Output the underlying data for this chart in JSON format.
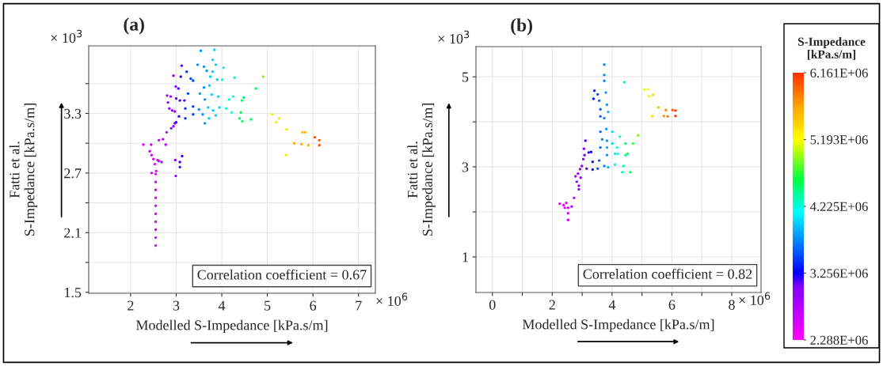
{
  "chart_data": [
    {
      "type": "scatter",
      "title": "(a)",
      "xlabel": "Modelled S-Impedance [kPa.s/m]",
      "ylabel": "Fatti et al.\nS-Impedance [kPa.s/m]",
      "annotations": [
        "Correlation coefficient = 0.67",
        "× 10$^{3}$",
        "× 10$^{6}$"
      ],
      "xlim": [
        1.08,
        7.37
      ],
      "ylim": [
        1.49,
        3.98
      ],
      "xticks": [
        2,
        3,
        4,
        5,
        6,
        7
      ],
      "yticks": [
        1.5,
        {
          "value": 1.8,
          "label": null
        },
        2.1,
        {
          "value": 2.4,
          "label": null
        },
        2.7,
        {
          "value": 3.0,
          "label": null
        },
        3.3,
        {
          "value": 3.6,
          "label": null
        }
      ],
      "grid": true,
      "marker": "circle",
      "x": [
        2.55,
        2.55,
        2.55,
        2.55,
        2.55,
        2.55,
        2.55,
        2.55,
        2.55,
        2.55,
        2.28,
        2.45,
        2.42,
        2.46,
        2.5,
        2.59,
        2.68,
        2.62,
        2.53,
        2.46,
        2.56,
        2.62,
        2.79,
        2.89,
        2.97,
        3.0,
        2.94,
        2.91,
        2.85,
        2.82,
        2.8,
        2.88,
        3.0,
        2.97,
        2.77,
        2.71,
        3.12,
        2.94,
        3.1,
        3.23,
        3.32,
        3.37,
        2.99,
        3.05,
        3.26,
        3.08,
        3.18,
        3.06,
        3.2,
        3.2,
        2.98,
        3.08,
        3.13,
        3.08,
        2.99,
        3.54,
        3.84,
        3.8,
        3.47,
        3.61,
        3.67,
        3.8,
        3.87,
        4.04,
        3.75,
        3.9,
        4.01,
        3.61,
        3.73,
        3.52,
        3.63,
        3.78,
        3.92,
        3.5,
        3.58,
        3.63,
        3.72,
        3.81,
        3.87,
        3.95,
        4.1,
        3.37,
        3.37,
        3.7,
        4.16,
        4.25,
        4.28,
        4.48,
        4.44,
        4.75,
        4.91,
        4.42,
        4.39,
        4.45,
        4.64,
        4.22,
        5.11,
        5.26,
        5.19,
        5.42,
        5.41,
        5.59,
        5.77,
        5.83,
        5.75,
        5.9,
        6.04,
        6.14,
        6.14
      ],
      "values": [
        1.97,
        2.05,
        2.13,
        2.21,
        2.29,
        2.37,
        2.45,
        2.53,
        2.61,
        2.69,
        2.985,
        2.985,
        2.92,
        2.88,
        2.84,
        2.83,
        2.81,
        2.82,
        2.79,
        2.7,
        2.72,
        3.03,
        3.11,
        3.15,
        3.2,
        3.21,
        3.17,
        3.33,
        3.35,
        3.41,
        3.48,
        3.47,
        3.45,
        3.32,
        2.985,
        3.04,
        3.78,
        3.68,
        3.67,
        3.72,
        3.65,
        3.63,
        3.57,
        3.55,
        3.5,
        3.43,
        3.43,
        3.27,
        3.25,
        3.35,
        2.83,
        2.81,
        2.87,
        2.76,
        2.67,
        3.93,
        3.94,
        3.84,
        3.79,
        3.77,
        3.73,
        3.72,
        3.79,
        3.76,
        3.67,
        3.64,
        3.64,
        3.56,
        3.58,
        3.5,
        3.44,
        3.49,
        3.47,
        3.34,
        3.29,
        3.2,
        3.25,
        3.33,
        3.28,
        3.36,
        3.35,
        3.29,
        3.37,
        3.36,
        3.44,
        3.47,
        3.66,
        3.46,
        3.43,
        3.55,
        3.67,
        3.31,
        3.25,
        3.22,
        3.24,
        3.31,
        3.29,
        3.25,
        3.21,
        3.14,
        2.88,
        3.0,
        3.11,
        3.11,
        2.99,
        2.98,
        3.06,
        3.03,
        2.98
      ],
      "colors": [
        "#d800ff",
        "#d800ff",
        "#d800ff",
        "#d800ff",
        "#d800ff",
        "#d800ff",
        "#d800ff",
        "#d800ff",
        "#d800ff",
        "#d800ff",
        "#d800ff",
        "#d800ff",
        "#d800ff",
        "#d800ff",
        "#d800ff",
        "#d800ff",
        "#b800ff",
        "#b800ff",
        "#d800ff",
        "#d800ff",
        "#d800ff",
        "#b800ff",
        "#b800ff",
        "#9400ff",
        "#9400ff",
        "#4000ff",
        "#9400ff",
        "#9400ff",
        "#9400ff",
        "#9400ff",
        "#9400ff",
        "#9400ff",
        "#4000ff",
        "#9400ff",
        "#b800ff",
        "#b800ff",
        "#4000ff",
        "#9400ff",
        "#4000ff",
        "#0040ff",
        "#0040ff",
        "#0040ff",
        "#9400ff",
        "#4000ff",
        "#0040ff",
        "#4000ff",
        "#4000ff",
        "#4000ff",
        "#0040ff",
        "#0040ff",
        "#9400ff",
        "#4000ff",
        "#4000ff",
        "#4000ff",
        "#9400ff",
        "#0090ff",
        "#00d0ff",
        "#00d0ff",
        "#0090ff",
        "#0090ff",
        "#0090ff",
        "#00d0ff",
        "#00d0ff",
        "#00ffd0",
        "#00d0ff",
        "#00d0ff",
        "#00ffd0",
        "#0090ff",
        "#00d0ff",
        "#0090ff",
        "#0090ff",
        "#00d0ff",
        "#00d0ff",
        "#0090ff",
        "#0090ff",
        "#0090ff",
        "#00d0ff",
        "#00d0ff",
        "#00d0ff",
        "#00d0ff",
        "#00ffd0",
        "#0040ff",
        "#0040ff",
        "#00d0ff",
        "#00ffd0",
        "#00ffd0",
        "#00ffd0",
        "#00ff60",
        "#00ff60",
        "#00ff60",
        "#80ff00",
        "#00ff60",
        "#00ff60",
        "#00ff60",
        "#00ff60",
        "#00ffd0",
        "#f0f000",
        "#f0f000",
        "#f0f000",
        "#f0f000",
        "#f0f000",
        "#ffb000",
        "#ffb000",
        "#ffb000",
        "#ffb000",
        "#ffb000",
        "#ff5000",
        "#ff5000",
        "#ff5000"
      ]
    },
    {
      "type": "scatter",
      "title": "(b)",
      "xlabel": "Modelled S-Impedance [kPa.s/m]",
      "ylabel": "Fatti et al.\nS-Impedance [kPa.s/m]",
      "annotations": [
        "Correlation coefficient = 0.82",
        "× 10$^{3}$",
        "× 10$^{6}$"
      ],
      "xlim": [
        -0.55,
        8.98
      ],
      "ylim": [
        0.21,
        5.67
      ],
      "xticks": [
        0,
        {
          "value": 1,
          "label": null
        },
        2,
        {
          "value": 3,
          "label": null
        },
        4,
        {
          "value": 5,
          "label": null
        },
        6,
        {
          "value": 7,
          "label": null
        },
        8
      ],
      "yticks": [
        1,
        {
          "value": 2,
          "label": null
        },
        3,
        {
          "value": 4,
          "label": null
        },
        5
      ],
      "grid": true,
      "marker": "circle",
      "clabel": "S-Impedance\n[kPa.s/m]",
      "clim": [
        2288000,
        6161000
      ],
      "cticks": [
        {
          "value": 2288000,
          "label": "2.288E+06"
        },
        {
          "value": 3256000,
          "label": "3.256E+06"
        },
        {
          "value": 4225000,
          "label": "4.225E+06"
        },
        {
          "value": 5193000,
          "label": "5.193E+06"
        },
        {
          "value": 6161000,
          "label": "6.161E+06"
        }
      ],
      "x": [
        2.53,
        2.53,
        2.53,
        2.25,
        2.38,
        2.47,
        2.65,
        2.73,
        2.42,
        2.89,
        2.89,
        2.82,
        2.78,
        2.86,
        2.95,
        2.93,
        2.99,
        3.04,
        3.08,
        3.06,
        3.11,
        3.22,
        3.3,
        3.15,
        3.35,
        3.74,
        3.74,
        3.74,
        3.41,
        3.52,
        3.79,
        3.38,
        3.57,
        3.83,
        3.61,
        3.87,
        3.61,
        3.74,
        3.81,
        3.61,
        4.01,
        3.67,
        3.83,
        3.61,
        3.83,
        3.83,
        3.57,
        3.74,
        3.87,
        3.35,
        3.52,
        4.1,
        4.01,
        4.1,
        4.17,
        4.26,
        4.19,
        4.45,
        4.52,
        4.45,
        4.7,
        4.87,
        4.38,
        4.34,
        4.61,
        4.41,
        5.08,
        5.2,
        5.24,
        5.37,
        5.35,
        5.55,
        5.8,
        5.73,
        5.86,
        6.02,
        6.12,
        6.12
      ],
      "values": [
        1.82,
        1.97,
        2.09,
        2.18,
        2.15,
        2.2,
        2.12,
        2.31,
        2.09,
        2.5,
        2.58,
        2.67,
        2.79,
        2.85,
        2.76,
        2.95,
        3.02,
        3.17,
        3.26,
        3.4,
        3.58,
        3.32,
        3.33,
        2.96,
        3.11,
        5.27,
        5.04,
        4.91,
        4.69,
        4.61,
        4.65,
        4.51,
        4.47,
        4.38,
        4.28,
        4.22,
        4.12,
        4.08,
        3.84,
        3.78,
        3.78,
        3.61,
        3.58,
        3.43,
        3.43,
        3.26,
        3.14,
        3.02,
        2.99,
        2.94,
        2.96,
        3.05,
        3.52,
        3.29,
        3.43,
        3.67,
        3.29,
        3.26,
        3.29,
        3.52,
        3.52,
        3.7,
        3.02,
        2.88,
        2.88,
        4.88,
        4.72,
        4.72,
        4.57,
        4.6,
        4.13,
        4.32,
        4.26,
        4.13,
        4.12,
        4.26,
        4.25,
        4.13
      ],
      "cvalues": [
        2530000,
        2530000,
        2530000,
        2250000,
        2380000,
        2470000,
        2650000,
        2730000,
        2420000,
        2890000,
        2890000,
        2820000,
        2780000,
        2860000,
        2950000,
        2930000,
        2990000,
        3040000,
        3080000,
        3060000,
        3110000,
        3220000,
        3300000,
        3150000,
        3350000,
        3740000,
        3740000,
        3740000,
        3410000,
        3520000,
        3790000,
        3380000,
        3570000,
        3830000,
        3610000,
        3870000,
        3610000,
        3740000,
        3810000,
        3610000,
        4010000,
        3670000,
        3830000,
        3610000,
        3830000,
        3830000,
        3570000,
        3740000,
        3870000,
        3350000,
        3520000,
        4100000,
        4010000,
        4100000,
        4170000,
        4260000,
        4190000,
        4450000,
        4520000,
        4450000,
        4700000,
        4870000,
        4380000,
        4340000,
        4610000,
        4410000,
        5080000,
        5200000,
        5240000,
        5370000,
        5350000,
        5550000,
        5800000,
        5730000,
        5860000,
        6020000,
        6120000,
        6120000
      ]
    }
  ]
}
